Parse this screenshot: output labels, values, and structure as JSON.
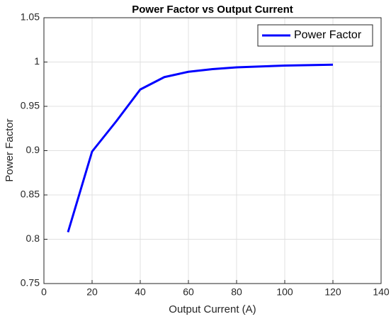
{
  "chart_data": {
    "type": "line",
    "title": "Power Factor vs Output Current",
    "x_label": "Output Current (A)",
    "y_label": "Power Factor",
    "x": [
      10,
      20,
      30,
      40,
      50,
      60,
      70,
      80,
      90,
      100,
      110,
      120
    ],
    "series": [
      {
        "name": "Power Factor",
        "color": "#0000ff",
        "values": [
          0.808,
          0.899,
          0.933,
          0.969,
          0.983,
          0.989,
          0.992,
          0.994,
          0.995,
          0.996,
          0.9965,
          0.997
        ]
      }
    ],
    "xlim": [
      0,
      140
    ],
    "xticks": [
      0,
      20,
      40,
      60,
      80,
      100,
      120,
      140
    ],
    "ylim": [
      0.75,
      1.05
    ],
    "yticks": [
      0.75,
      0.8,
      0.85,
      0.9,
      0.95,
      1,
      1.05
    ],
    "grid": true,
    "legend": "northeast"
  }
}
